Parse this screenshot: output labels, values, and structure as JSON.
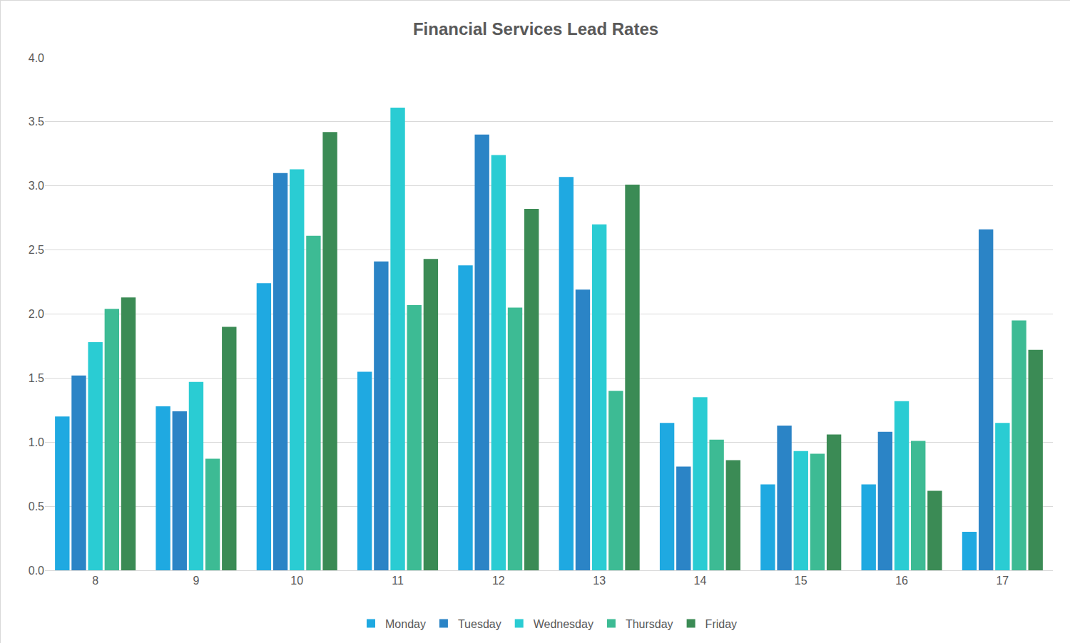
{
  "chart_data": {
    "type": "bar",
    "title": "Financial Services Lead Rates",
    "categories": [
      "8",
      "9",
      "10",
      "11",
      "12",
      "13",
      "14",
      "15",
      "16",
      "17"
    ],
    "series": [
      {
        "name": "Monday",
        "color": "#1fa9e1",
        "values": [
          1.2,
          1.28,
          2.24,
          1.55,
          2.38,
          3.07,
          1.15,
          0.67,
          0.67,
          0.3
        ]
      },
      {
        "name": "Tuesday",
        "color": "#2b84c6",
        "values": [
          1.52,
          1.24,
          3.1,
          2.41,
          3.4,
          2.19,
          0.81,
          1.13,
          1.08,
          2.66
        ]
      },
      {
        "name": "Wednesday",
        "color": "#2accd3",
        "values": [
          1.78,
          1.47,
          3.13,
          3.61,
          3.24,
          2.7,
          1.35,
          0.93,
          1.32,
          1.15
        ]
      },
      {
        "name": "Thursday",
        "color": "#3dbb94",
        "values": [
          2.04,
          0.87,
          2.61,
          2.07,
          2.05,
          1.4,
          1.02,
          0.91,
          1.01,
          1.95
        ]
      },
      {
        "name": "Friday",
        "color": "#3b8b55",
        "values": [
          2.13,
          1.9,
          3.42,
          2.43,
          2.82,
          3.01,
          0.86,
          1.06,
          0.62,
          1.72
        ]
      }
    ],
    "ylim": [
      0,
      4
    ],
    "yticks": [
      {
        "value": 0,
        "label": "0.0"
      },
      0.5,
      {
        "value": 1,
        "label": "1.0"
      },
      1.5,
      {
        "value": 2,
        "label": "2.0"
      },
      2.5,
      {
        "value": 3,
        "label": "3.0"
      },
      3.5,
      {
        "value": 4,
        "label": "4.0"
      }
    ],
    "grid": true,
    "legend": "bottom"
  }
}
